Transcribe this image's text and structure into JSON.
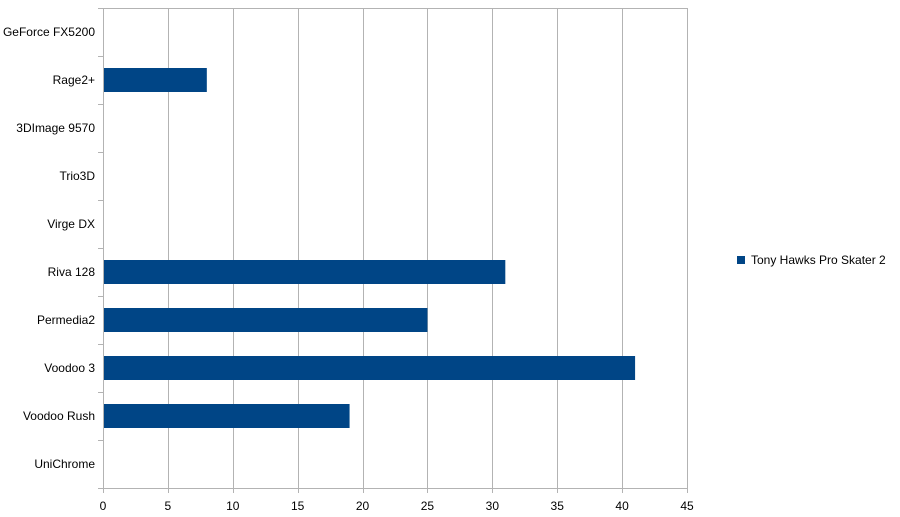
{
  "chart_data": {
    "type": "bar",
    "orientation": "horizontal",
    "categories": [
      "GeForce FX5200",
      "Rage2+",
      "3DImage 9570",
      "Trio3D",
      "Virge DX",
      "Riva 128",
      "Permedia2",
      "Voodoo 3",
      "Voodoo Rush",
      "UniChrome"
    ],
    "series": [
      {
        "name": "Tony Hawks Pro Skater 2",
        "values": [
          null,
          8,
          null,
          null,
          null,
          31,
          25,
          41,
          19,
          null
        ],
        "color": "#004586"
      }
    ],
    "xlim": [
      0,
      45
    ],
    "xticks": [
      0,
      5,
      10,
      15,
      20,
      25,
      30,
      35,
      40,
      45
    ],
    "title": "",
    "xlabel": "",
    "ylabel": "",
    "grid": "vertical",
    "grid_color": "#b3b3b3",
    "legend_position": "right"
  }
}
